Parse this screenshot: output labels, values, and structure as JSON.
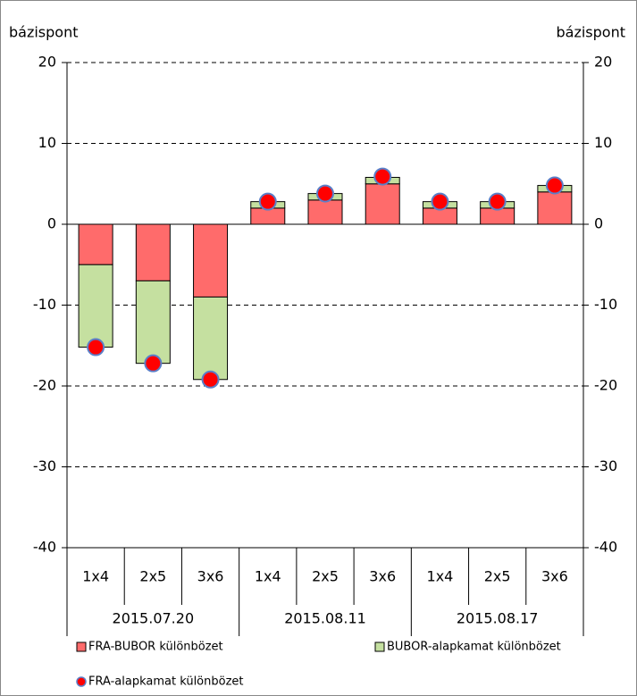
{
  "chart_data": {
    "type": "stacked-bar-dot",
    "ylabel": "bázispont",
    "y2label": "bázispont",
    "groups": [
      "2015.07.20",
      "2015.08.11",
      "2015.08.17"
    ],
    "categories": [
      "1x4",
      "2x5",
      "3x6",
      "1x4",
      "2x5",
      "3x6",
      "1x4",
      "2x5",
      "3x6"
    ],
    "series": [
      {
        "name": "FRA-BUBOR különbözet",
        "color": "#ff6b6b",
        "kind": "bar",
        "values": [
          -5,
          -7,
          -9,
          2,
          3,
          5,
          2,
          2,
          4
        ]
      },
      {
        "name": "BUBOR-alapkamat különbözet",
        "color": "#c5e0a0",
        "kind": "bar",
        "values": [
          -10.2,
          -10.2,
          -10.2,
          0.8,
          0.8,
          0.8,
          0.8,
          0.8,
          0.8
        ]
      },
      {
        "name": "FRA-alapkamat különbözet",
        "color": "#ff0000",
        "kind": "dot",
        "values": [
          -15.2,
          -17.2,
          -19.2,
          2.8,
          3.8,
          5.9,
          2.8,
          2.8,
          4.8
        ]
      }
    ],
    "ylim": [
      -40,
      20
    ],
    "yticks": [
      -40,
      -30,
      -20,
      -10,
      0,
      10,
      20
    ],
    "y2lim": [
      -40,
      20
    ],
    "y2ticks": [
      -40,
      -30,
      -20,
      -10,
      0,
      10,
      20
    ],
    "grid": true
  }
}
